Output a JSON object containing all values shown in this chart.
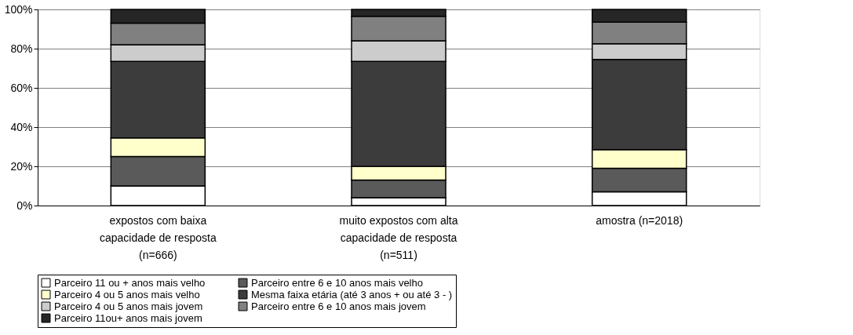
{
  "chart_data": {
    "type": "bar",
    "stacked": true,
    "categories": [
      "expostos com baixa capacidade de resposta (n=666)",
      "muito expostos com alta capacidade de resposta (n=511)",
      "amostra (n=2018)"
    ],
    "series": [
      {
        "name": "Parceiro 11 ou + anos mais velho",
        "color": "#ffffff",
        "values": [
          10,
          4,
          7
        ]
      },
      {
        "name": "Parceiro entre 6 e 10 anos mais velho",
        "color": "#5a5a5a",
        "values": [
          15,
          9,
          12
        ]
      },
      {
        "name": "Parceiro  4 ou 5 anos mais velho",
        "color": "#ffffcc",
        "values": [
          9.5,
          7,
          9.5
        ]
      },
      {
        "name": "Mesma faixa etária (até 3 anos + ou até 3 - )",
        "color": "#3c3c3c",
        "values": [
          39,
          53.5,
          46
        ]
      },
      {
        "name": "Parceiro 4 ou 5 anos mais jovem",
        "color": "#cccccc",
        "values": [
          8.5,
          10.5,
          8
        ]
      },
      {
        "name": "Parceiro entre 6 e 10 anos mais jovem",
        "color": "#808080",
        "values": [
          11,
          12.5,
          11
        ]
      },
      {
        "name": "Parceiro 11ou+ anos mais jovem",
        "color": "#262626",
        "values": [
          7,
          3.5,
          6.5
        ]
      }
    ],
    "ylim": [
      0,
      100
    ],
    "yticks": [
      {
        "value": 0,
        "label": "0%"
      },
      {
        "value": 20,
        "label": "20%"
      },
      {
        "value": 40,
        "label": "40%"
      },
      {
        "value": 60,
        "label": "60%"
      },
      {
        "value": 80,
        "label": "80%"
      },
      {
        "value": 100,
        "label": "100%"
      }
    ],
    "grid": "y",
    "legend": "bottom"
  }
}
